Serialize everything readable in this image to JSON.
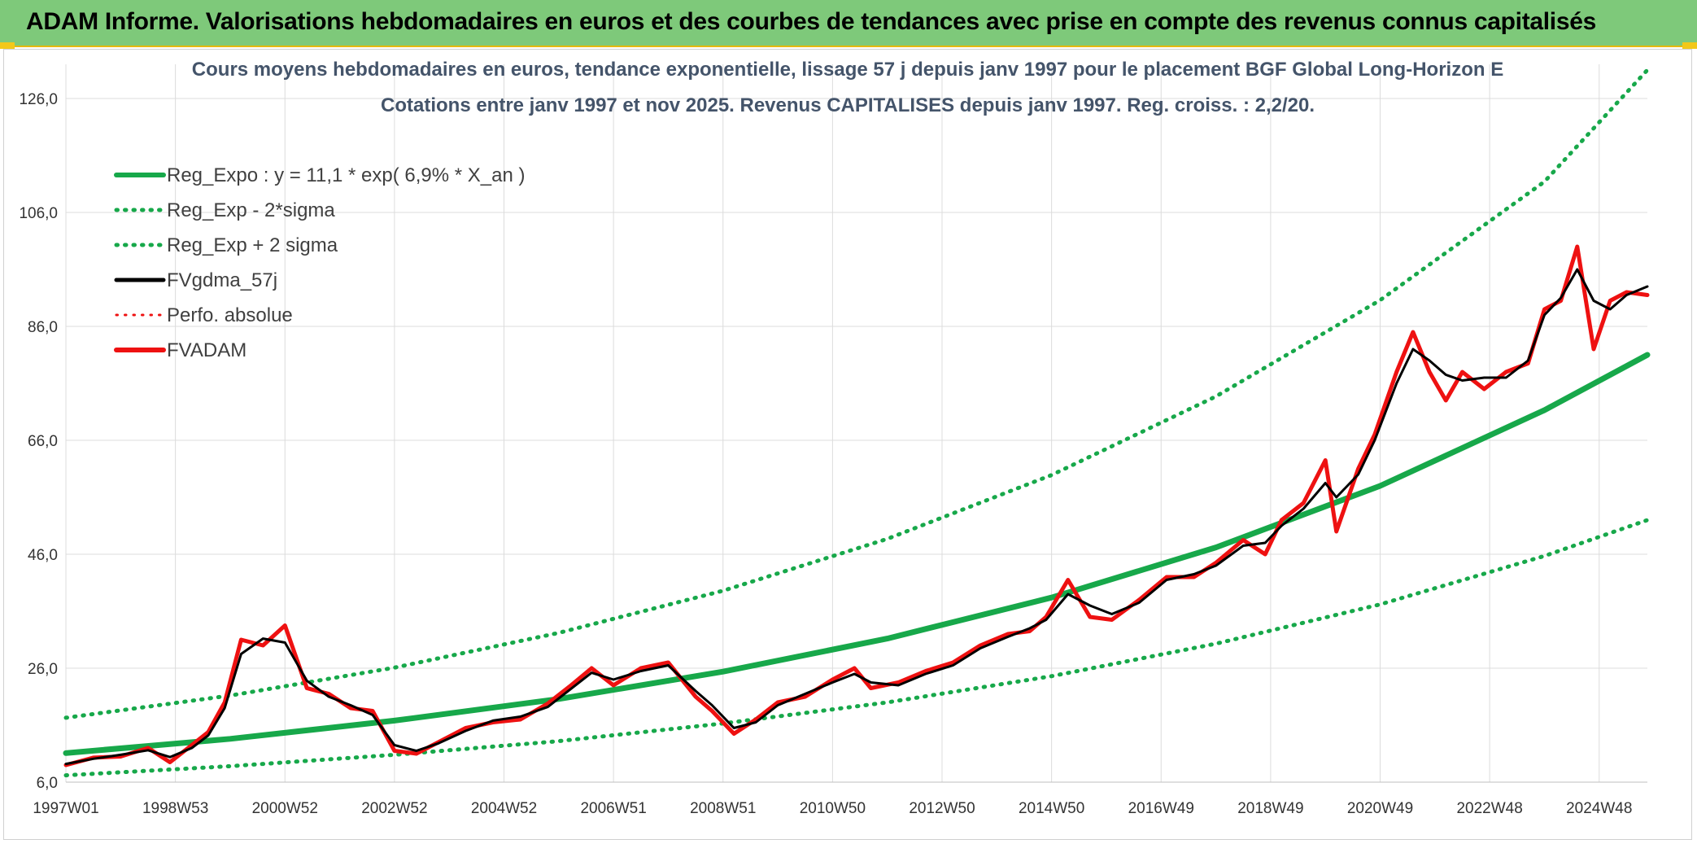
{
  "header": {
    "title": "ADAM Informe. Valorisations hebdomadaires en euros et des courbes de tendances avec prise en compte des revenus connus capitalisés"
  },
  "chart_data": {
    "type": "line",
    "title_line1": "Cours moyens hebdomadaires en euros, tendance exponentielle, lissage 57 j depuis janv 1997 pour le placement BGF Global Long-Horizon E",
    "title_line2": "Cotations entre janv 1997 et nov 2025. Revenus CAPITALISES depuis janv 1997. Reg. croiss. : 2,2/20.",
    "xlabel": "",
    "ylabel": "",
    "ylim": [
      6,
      132
    ],
    "xlim": [
      1997.0,
      2025.88
    ],
    "y_ticks": [
      6,
      26,
      46,
      66,
      86,
      106,
      126
    ],
    "y_tick_labels": [
      "6,0",
      "26,0",
      "46,0",
      "66,0",
      "86,0",
      "106,0",
      "126,0"
    ],
    "x_ticks": [
      1997.0,
      1999.0,
      2001.0,
      2003.0,
      2005.0,
      2007.0,
      2009.0,
      2011.0,
      2013.0,
      2015.0,
      2017.0,
      2019.0,
      2021.0,
      2023.0,
      2025.0
    ],
    "x_tick_labels": [
      "1997W01",
      "1998W53",
      "2000W52",
      "2002W52",
      "2004W52",
      "2006W51",
      "2008W51",
      "2010W50",
      "2012W50",
      "2014W50",
      "2016W49",
      "2018W49",
      "2020W49",
      "2022W48",
      "2024W48"
    ],
    "grid": true,
    "legend_position": "top-left",
    "colors": {
      "green": "#17a84a",
      "black": "#000000",
      "red": "#ee1111"
    },
    "series": [
      {
        "name": "Reg_Expo : y = 11,1 * exp( 6,9% *  X_an )",
        "style": "solid",
        "color": "#17a84a",
        "x": [
          1997.0,
          2000.0,
          2003.0,
          2006.0,
          2009.0,
          2012.0,
          2015.0,
          2018.0,
          2021.0,
          2024.0,
          2025.88
        ],
        "values": [
          11.1,
          13.6,
          16.8,
          20.6,
          25.4,
          31.2,
          38.4,
          47.2,
          58.0,
          71.3,
          81.0
        ]
      },
      {
        "name": "Reg_Exp - 2*sigma",
        "style": "dotted",
        "color": "#17a84a",
        "x": [
          1997.0,
          2000.0,
          2003.0,
          2006.0,
          2009.0,
          2012.0,
          2015.0,
          2018.0,
          2021.0,
          2024.0,
          2025.88
        ],
        "values": [
          7.2,
          8.8,
          10.8,
          13.2,
          16.3,
          20.0,
          24.6,
          30.3,
          37.2,
          45.7,
          52.0
        ]
      },
      {
        "name": "Reg_Exp + 2 sigma",
        "style": "dotted",
        "color": "#17a84a",
        "x": [
          1997.0,
          2000.0,
          2003.0,
          2006.0,
          2009.0,
          2012.0,
          2015.0,
          2018.0,
          2021.0,
          2024.0,
          2025.88
        ],
        "values": [
          17.3,
          21.2,
          26.1,
          32.2,
          39.6,
          48.7,
          59.9,
          73.7,
          90.6,
          111.4,
          131.0
        ]
      },
      {
        "name": "FVgdma_57j",
        "style": "solid",
        "color": "#000000",
        "x": [
          1997.0,
          1997.5,
          1998.0,
          1998.5,
          1998.9,
          1999.3,
          1999.6,
          1999.9,
          2000.2,
          2000.6,
          2001.0,
          2001.4,
          2001.8,
          2002.2,
          2002.6,
          2003.0,
          2003.4,
          2003.8,
          2004.3,
          2004.8,
          2005.3,
          2005.8,
          2006.2,
          2006.6,
          2007.0,
          2007.5,
          2008.0,
          2008.5,
          2008.8,
          2009.2,
          2009.6,
          2010.0,
          2010.5,
          2011.0,
          2011.4,
          2011.7,
          2012.2,
          2012.7,
          2013.2,
          2013.7,
          2014.2,
          2014.6,
          2014.9,
          2015.3,
          2015.7,
          2016.1,
          2016.6,
          2017.1,
          2017.6,
          2018.0,
          2018.5,
          2018.9,
          2019.2,
          2019.6,
          2020.0,
          2020.2,
          2020.6,
          2020.9,
          2021.3,
          2021.6,
          2021.9,
          2022.2,
          2022.5,
          2022.9,
          2023.3,
          2023.7,
          2024.0,
          2024.3,
          2024.6,
          2024.9,
          2025.2,
          2025.5,
          2025.88
        ],
        "values": [
          9.2,
          10.1,
          10.8,
          11.6,
          10.4,
          12.0,
          14.2,
          19.0,
          28.5,
          31.2,
          30.5,
          23.8,
          21.0,
          19.5,
          17.8,
          12.5,
          11.5,
          12.8,
          15.0,
          16.8,
          17.5,
          19.2,
          22.2,
          25.2,
          24.0,
          25.5,
          26.5,
          22.0,
          19.5,
          15.5,
          16.5,
          19.5,
          21.5,
          23.5,
          25.0,
          23.5,
          23.0,
          25.0,
          26.5,
          29.5,
          31.5,
          33.0,
          34.5,
          39.0,
          37.0,
          35.5,
          37.5,
          41.5,
          42.5,
          44.0,
          47.5,
          48.0,
          51.0,
          54.0,
          58.5,
          56.0,
          60.0,
          66.0,
          76.0,
          82.0,
          80.0,
          77.5,
          76.5,
          77.0,
          77.0,
          80.0,
          88.0,
          91.0,
          96.0,
          90.5,
          89.0,
          91.5,
          93.0
        ]
      },
      {
        "name": "Perfo. absolue",
        "style": "dotted",
        "color": "#ee1111",
        "x": [
          1997.0,
          1997.5,
          1998.0,
          1998.5,
          1998.9,
          1999.3,
          1999.6,
          1999.9,
          2000.2,
          2000.6,
          2001.0,
          2001.4,
          2001.8,
          2002.2,
          2002.6,
          2003.0,
          2003.4,
          2003.8,
          2004.3,
          2004.8,
          2005.3,
          2005.8,
          2006.2,
          2006.6,
          2007.0,
          2007.5,
          2008.0,
          2008.5,
          2008.8,
          2009.2,
          2009.6,
          2010.0,
          2010.5,
          2011.0,
          2011.4,
          2011.7,
          2012.2,
          2012.7,
          2013.2,
          2013.7,
          2014.2,
          2014.6,
          2014.9,
          2015.3,
          2015.7,
          2016.1,
          2016.6,
          2017.1,
          2017.6,
          2018.0,
          2018.5,
          2018.9,
          2019.2,
          2019.6,
          2020.0,
          2020.2,
          2020.6,
          2020.9,
          2021.3,
          2021.6,
          2021.9,
          2022.2,
          2022.5,
          2022.9,
          2023.3,
          2023.7,
          2024.0,
          2024.3,
          2024.6,
          2024.9,
          2025.2,
          2025.5,
          2025.88
        ],
        "values": [
          9.0,
          10.3,
          10.5,
          12.0,
          9.5,
          12.5,
          14.8,
          20.0,
          31.0,
          30.0,
          33.5,
          22.5,
          21.5,
          19.0,
          18.5,
          11.5,
          11.0,
          13.0,
          15.5,
          16.5,
          17.0,
          19.8,
          22.8,
          26.0,
          23.0,
          26.0,
          27.0,
          21.0,
          18.5,
          14.5,
          17.0,
          20.0,
          21.0,
          24.0,
          26.0,
          22.5,
          23.5,
          25.5,
          27.0,
          30.0,
          32.0,
          32.5,
          35.0,
          41.5,
          35.0,
          34.5,
          38.0,
          42.0,
          42.0,
          44.5,
          48.5,
          46.0,
          52.0,
          55.0,
          62.5,
          50.0,
          61.0,
          67.0,
          78.0,
          85.0,
          78.0,
          73.0,
          78.0,
          75.0,
          78.0,
          79.5,
          89.0,
          90.5,
          100.0,
          82.0,
          90.5,
          92.0,
          91.5
        ]
      },
      {
        "name": "FVADAM",
        "style": "solid",
        "color": "#ee1111",
        "x": [
          1997.0,
          1997.5,
          1998.0,
          1998.5,
          1998.9,
          1999.3,
          1999.6,
          1999.9,
          2000.2,
          2000.6,
          2001.0,
          2001.4,
          2001.8,
          2002.2,
          2002.6,
          2003.0,
          2003.4,
          2003.8,
          2004.3,
          2004.8,
          2005.3,
          2005.8,
          2006.2,
          2006.6,
          2007.0,
          2007.5,
          2008.0,
          2008.5,
          2008.8,
          2009.2,
          2009.6,
          2010.0,
          2010.5,
          2011.0,
          2011.4,
          2011.7,
          2012.2,
          2012.7,
          2013.2,
          2013.7,
          2014.2,
          2014.6,
          2014.9,
          2015.3,
          2015.7,
          2016.1,
          2016.6,
          2017.1,
          2017.6,
          2018.0,
          2018.5,
          2018.9,
          2019.2,
          2019.6,
          2020.0,
          2020.2,
          2020.6,
          2020.9,
          2021.3,
          2021.6,
          2021.9,
          2022.2,
          2022.5,
          2022.9,
          2023.3,
          2023.7,
          2024.0,
          2024.3,
          2024.6,
          2024.9,
          2025.2,
          2025.5,
          2025.88
        ],
        "values": [
          9.0,
          10.3,
          10.5,
          12.0,
          9.5,
          12.5,
          14.8,
          20.0,
          31.0,
          30.0,
          33.5,
          22.5,
          21.5,
          19.0,
          18.5,
          11.5,
          11.0,
          13.0,
          15.5,
          16.5,
          17.0,
          19.8,
          22.8,
          26.0,
          23.0,
          26.0,
          27.0,
          21.0,
          18.5,
          14.5,
          17.0,
          20.0,
          21.0,
          24.0,
          26.0,
          22.5,
          23.5,
          25.5,
          27.0,
          30.0,
          32.0,
          32.5,
          35.0,
          41.5,
          35.0,
          34.5,
          38.0,
          42.0,
          42.0,
          44.5,
          48.5,
          46.0,
          52.0,
          55.0,
          62.5,
          50.0,
          61.0,
          67.0,
          78.0,
          85.0,
          78.0,
          73.0,
          78.0,
          75.0,
          78.0,
          79.5,
          89.0,
          90.5,
          100.0,
          82.0,
          90.5,
          92.0,
          91.5
        ]
      }
    ]
  }
}
